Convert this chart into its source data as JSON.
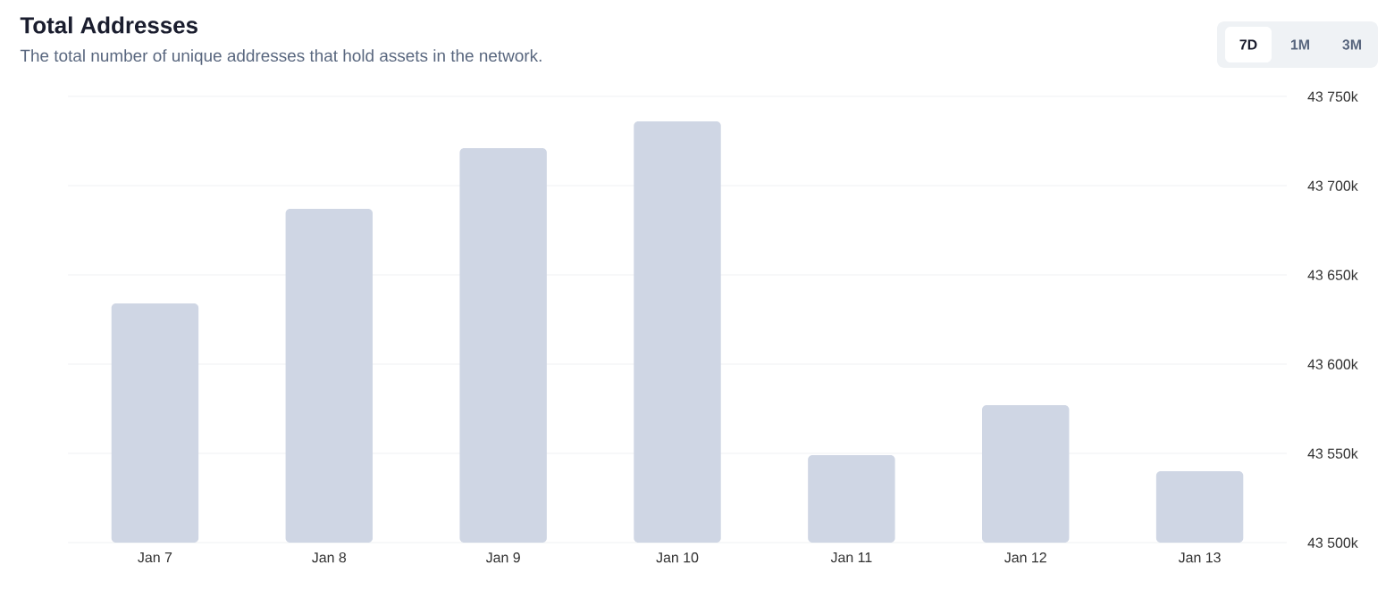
{
  "chart_data": {
    "type": "bar",
    "title": "Total Addresses",
    "subtitle": "The total number of unique addresses that hold assets in the network.",
    "categories": [
      "Jan 7",
      "Jan 8",
      "Jan 9",
      "Jan 10",
      "Jan 11",
      "Jan 12",
      "Jan 13"
    ],
    "values": [
      43634,
      43687,
      43721,
      43736,
      43549,
      43577,
      43540
    ],
    "color": "#cfd6e4",
    "ylim": [
      43500,
      43750
    ],
    "yticks": [
      {
        "value": 43500,
        "label": "43 500k"
      },
      {
        "value": 43550,
        "label": "43 550k"
      },
      {
        "value": 43600,
        "label": "43 600k"
      },
      {
        "value": 43650,
        "label": "43 650k"
      },
      {
        "value": 43700,
        "label": "43 700k"
      },
      {
        "value": 43750,
        "label": "43 750k"
      }
    ],
    "grid": "y",
    "annotations": [
      "7D",
      "1M",
      "3M"
    ]
  }
}
